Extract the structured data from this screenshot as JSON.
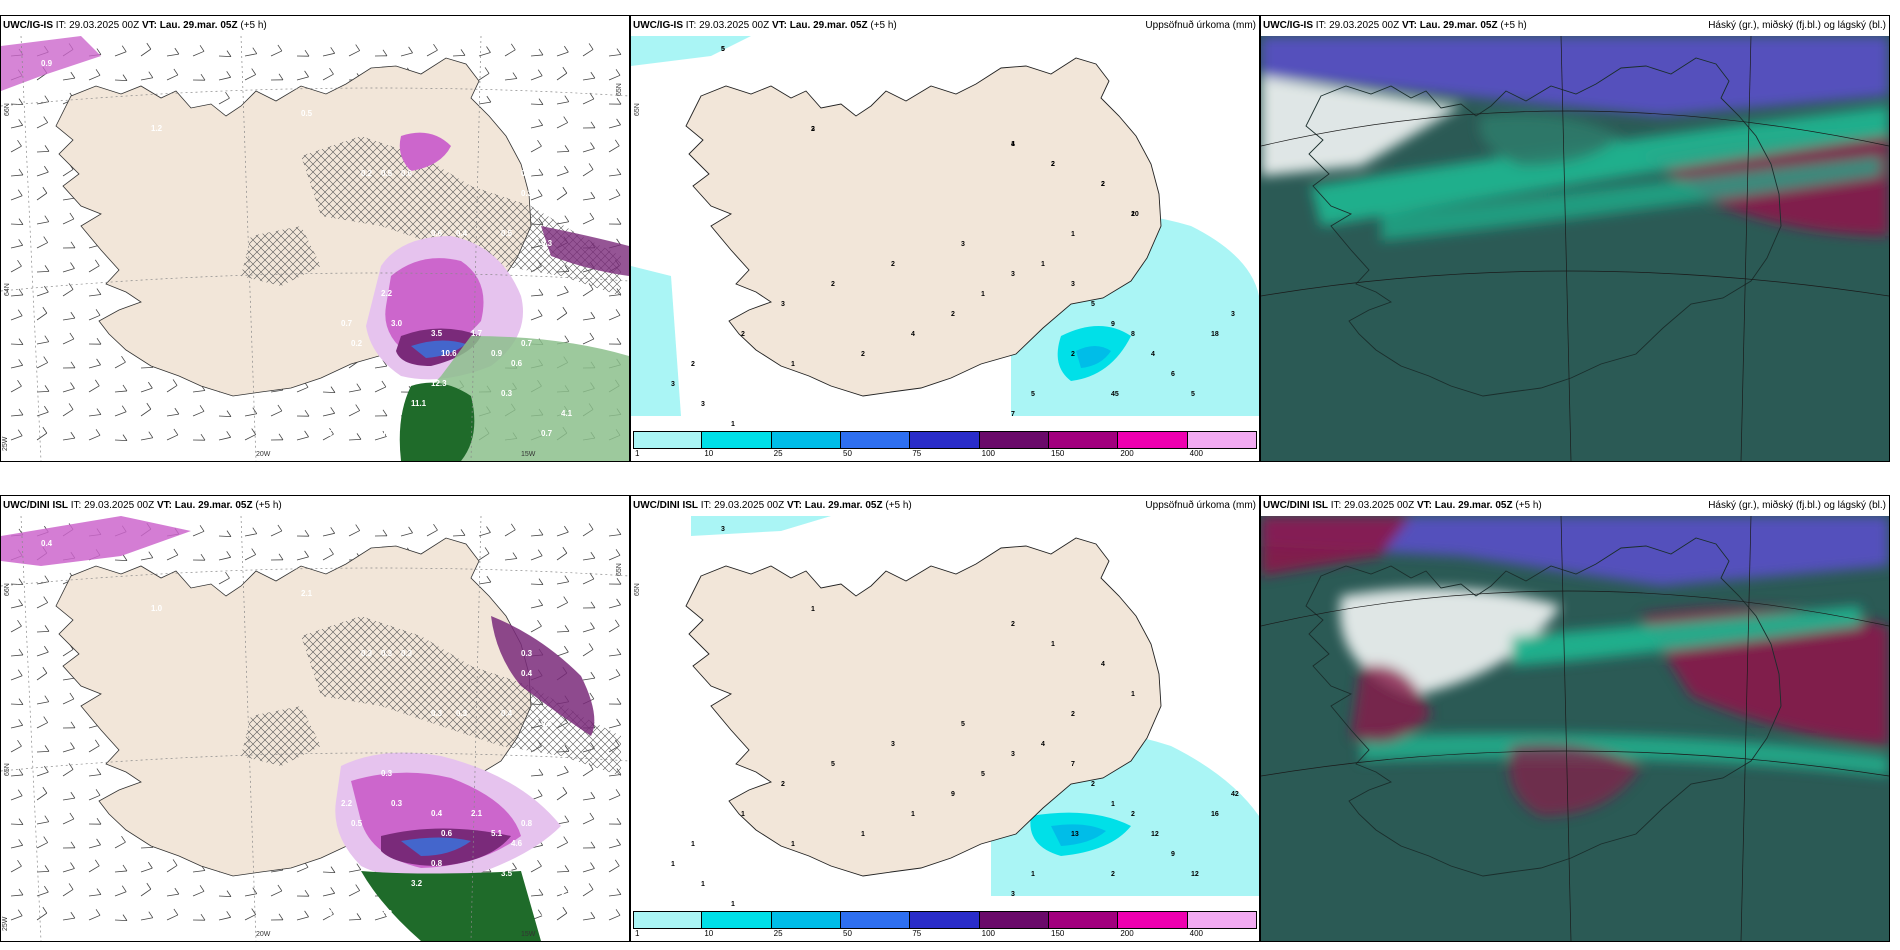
{
  "panels": {
    "tl": {
      "model": "UWC/IG-IS",
      "it_label": "IT:",
      "it_value": "29.03.2025 00Z",
      "vt_label": "VT:",
      "vt_value": "Lau. 29.mar. 05Z",
      "lead": "(+5 h)",
      "right_title": "",
      "lat_labels": [
        "66N",
        "64N"
      ],
      "lon_labels": [
        "25W",
        "20W",
        "15W",
        "65N"
      ],
      "values": [
        "0.9",
        "0.5",
        "1.2",
        "0.2",
        "0.5",
        "0.6",
        "0.4",
        "0.3",
        "0.6",
        "0.4",
        "0.5",
        "0.3",
        "2.2",
        "3.0",
        "3.5",
        "10.6",
        "12.3",
        "11.1",
        "0.7",
        "0.2",
        "1.7",
        "0.9",
        "0.6",
        "0.3",
        "0.7",
        "0.8",
        "0.5",
        "2.3",
        "4.1",
        "0.7"
      ]
    },
    "tm": {
      "model": "UWC/IG-IS",
      "it_label": "IT:",
      "it_value": "29.03.2025 00Z",
      "vt_label": "VT:",
      "vt_value": "Lau. 29.mar. 05Z",
      "lead": "(+5 h)",
      "right_title": "Uppsöfnuð úrkoma (mm)",
      "lat_labels": [
        "65N"
      ],
      "values": [
        "5",
        "2",
        "1",
        "2",
        "2",
        "2",
        "1",
        "3",
        "2",
        "2",
        "3",
        "2",
        "2",
        "3",
        "3",
        "1",
        "1",
        "2",
        "4",
        "2",
        "1",
        "3",
        "1",
        "3",
        "5",
        "9",
        "8",
        "4",
        "6",
        "5",
        "18",
        "3",
        "2",
        "45",
        "5",
        "7",
        "2",
        "5",
        "3",
        "4",
        "2",
        "2",
        "10"
      ],
      "colorbar": [
        "1",
        "10",
        "25",
        "50",
        "75",
        "100",
        "150",
        "200",
        "400"
      ]
    },
    "tr": {
      "model": "UWC/IG-IS",
      "it_label": "IT:",
      "it_value": "29.03.2025 00Z",
      "vt_label": "VT:",
      "vt_value": "Lau. 29.mar. 05Z",
      "lead": "(+5 h)",
      "right_title": "Háský (gr.), miðský (fj.bl.) og lágský (bl.)"
    },
    "bl": {
      "model": "UWC/DINI ISL",
      "it_label": "IT:",
      "it_value": "29.03.2025 00Z",
      "vt_label": "VT:",
      "vt_value": "Lau. 29.mar. 05Z",
      "lead": "(+5 h)",
      "right_title": "",
      "lat_labels": [
        "66N",
        "65N",
        "64N"
      ],
      "lon_labels": [
        "25W",
        "20W",
        "15W",
        "65N"
      ],
      "values": [
        "0.4",
        "2.1",
        "1.0",
        "0.3",
        "0.3",
        "0.3",
        "0.3",
        "0.4",
        "0.3",
        "0.3",
        "0.4",
        "0.3",
        "0.3",
        "0.3",
        "0.4",
        "0.6",
        "0.8",
        "3.2",
        "2.2",
        "0.5",
        "2.1",
        "5.1",
        "4.6",
        "3.5",
        "9.0",
        "2.3",
        "2.8",
        "2.3",
        "2.8",
        "0.8"
      ]
    },
    "bm": {
      "model": "UWC/DINI ISL",
      "it_label": "IT:",
      "it_value": "29.03.2025 00Z",
      "vt_label": "VT:",
      "vt_value": "Lau. 29.mar. 05Z",
      "lead": "(+5 h)",
      "right_title": "Uppsöfnuð úrkoma (mm)",
      "lat_labels": [
        "65N"
      ],
      "values": [
        "3",
        "1",
        "2",
        "1",
        "4",
        "1",
        "2",
        "5",
        "3",
        "5",
        "2",
        "1",
        "1",
        "1",
        "1",
        "1",
        "1",
        "1",
        "1",
        "9",
        "5",
        "3",
        "4",
        "7",
        "2",
        "1",
        "2",
        "12",
        "9",
        "12",
        "16",
        "42",
        "13",
        "2",
        "1",
        "3"
      ],
      "colorbar": [
        "1",
        "10",
        "25",
        "50",
        "75",
        "100",
        "150",
        "200",
        "400"
      ]
    },
    "br": {
      "model": "UWC/DINI ISL",
      "it_label": "IT:",
      "it_value": "29.03.2025 00Z",
      "vt_label": "VT:",
      "vt_value": "Lau. 29.mar. 05Z",
      "lead": "(+5 h)",
      "right_title": "Háský (gr.), miðský (fj.bl.) og lágský (bl.)"
    }
  },
  "colors": {
    "land": "#f2e6d9",
    "precip_light": "#e6c3ee",
    "precip_mid": "#cc66cc",
    "precip_dark": "#7a2a7a",
    "precip_core": "#4466cc",
    "snow_green": "#8cc08c",
    "snow_dark": "#1f6b2a",
    "accum_1": "#aaf5f5",
    "accum_10": "#00e0e8",
    "accum_25": "#00bde8",
    "accum_50": "#2e6ff0",
    "accum_75": "#2a2cc8",
    "accum_100": "#6a0a6a",
    "accum_150": "#a2007e",
    "accum_200": "#ee00b0",
    "accum_400": "#f2aaf2",
    "cloud_base": "#2b5a55",
    "cloud_high": "#1fb892",
    "cloud_mid": "#5a4fc8",
    "cloud_low": "#8a1a4a"
  }
}
